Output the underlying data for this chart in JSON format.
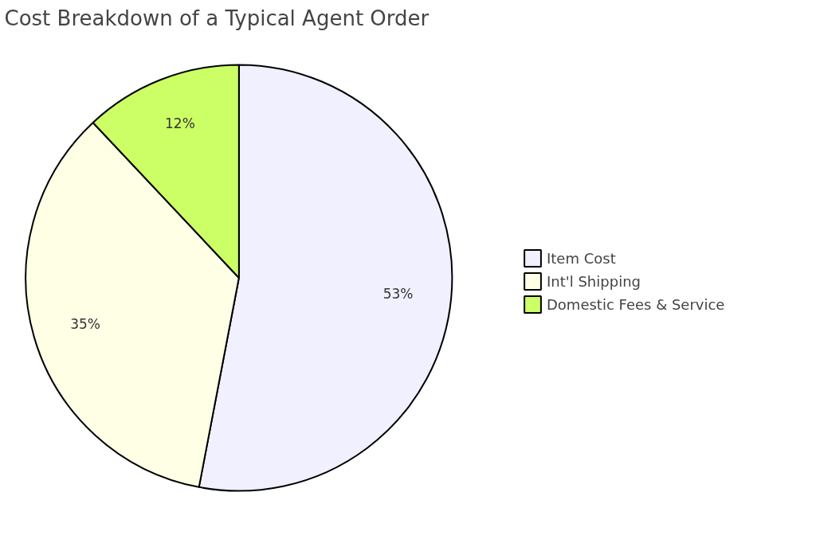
{
  "chart_data": {
    "type": "pie",
    "title": "Cost Breakdown of a Typical Agent Order",
    "categories": [
      "Item Cost",
      "Int'l Shipping",
      "Domestic Fees & Service"
    ],
    "values": [
      53,
      35,
      12
    ],
    "value_labels": [
      "53%",
      "35%",
      "12%"
    ],
    "colors": [
      "#f0f0ff",
      "#ffffe6",
      "#ccff66"
    ],
    "legend": "right"
  }
}
